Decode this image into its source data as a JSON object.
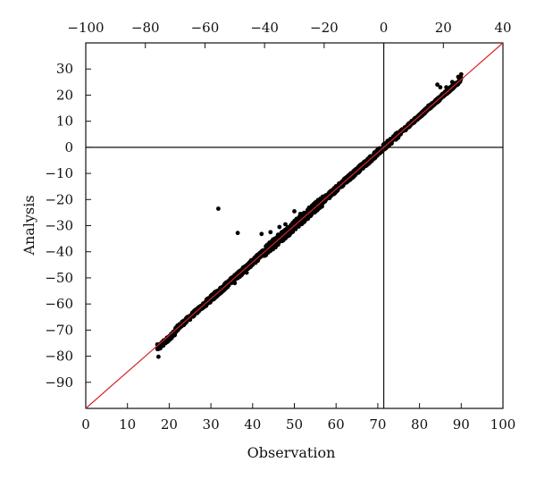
{
  "chart_data": {
    "type": "scatter",
    "title": "",
    "xlabel": "Observation",
    "ylabel": "Analysis",
    "x_bottom": {
      "range": [
        0,
        100
      ],
      "ticks": [
        0,
        10,
        20,
        30,
        40,
        50,
        60,
        70,
        80,
        90,
        100
      ]
    },
    "x_top": {
      "range": [
        -100,
        40
      ],
      "ticks": [
        -100,
        -80,
        -60,
        -40,
        -20,
        0,
        20,
        40
      ],
      "tick_labels": [
        "−100",
        "−80",
        "−60",
        "−40",
        "−20",
        "0",
        "20",
        "40"
      ]
    },
    "ylim": [
      -100,
      40
    ],
    "yticks": [
      -90,
      -80,
      -70,
      -60,
      -50,
      -40,
      -30,
      -20,
      -10,
      0,
      10,
      20,
      30
    ],
    "ytick_labels": [
      "−90",
      "−80",
      "−70",
      "−60",
      "−50",
      "−40",
      "−30",
      "−20",
      "−10",
      "0",
      "10",
      "20",
      "30"
    ],
    "grid": false,
    "reference_lines": {
      "vertical_x_top": 0,
      "horizontal_y": 0
    },
    "fit_line": {
      "from_top_x": -100,
      "from_y": -100,
      "to_top_x": 40,
      "to_y": 40,
      "color": "#d62728"
    },
    "point_color": "#000000",
    "band": {
      "x_top_start": -76,
      "x_top_end": 26,
      "typical_spread": 2.5,
      "wide_spread_region": [
        -40,
        -20
      ]
    },
    "points_top_x_y": [
      [
        -76,
        -75.5
      ],
      [
        -75.6,
        -80.2
      ],
      [
        -75,
        -77
      ],
      [
        -74,
        -76
      ],
      [
        -72,
        -73
      ],
      [
        -70,
        -71
      ],
      [
        -65,
        -66
      ],
      [
        -60,
        -61
      ],
      [
        -55,
        -56
      ],
      [
        -50,
        -52
      ],
      [
        -46,
        -48
      ],
      [
        -44,
        -45
      ],
      [
        -40,
        -40.5
      ],
      [
        -36,
        -37
      ],
      [
        -33,
        -33
      ],
      [
        -30,
        -30
      ],
      [
        -25,
        -25
      ],
      [
        -20,
        -20
      ],
      [
        -15,
        -15
      ],
      [
        -10,
        -10
      ],
      [
        -5,
        -5
      ],
      [
        0,
        0
      ],
      [
        5,
        5
      ],
      [
        10,
        10
      ],
      [
        15,
        16
      ],
      [
        20,
        20.5
      ],
      [
        24,
        24.5
      ],
      [
        25.5,
        25
      ],
      [
        26,
        28
      ],
      [
        -55.5,
        -23.5
      ],
      [
        -49,
        -32.8
      ],
      [
        -41,
        -33.2
      ],
      [
        -38,
        -32.5
      ],
      [
        -35.5,
        -33.5
      ],
      [
        -35,
        -30.5
      ],
      [
        -33,
        -29.5
      ],
      [
        -30,
        -24.5
      ],
      [
        -28,
        -25.5
      ],
      [
        -25.5,
        -24
      ],
      [
        -22,
        -22
      ],
      [
        18,
        24
      ],
      [
        19,
        23
      ],
      [
        21,
        23
      ],
      [
        23,
        25
      ],
      [
        24,
        23.5
      ],
      [
        25,
        27
      ]
    ]
  }
}
